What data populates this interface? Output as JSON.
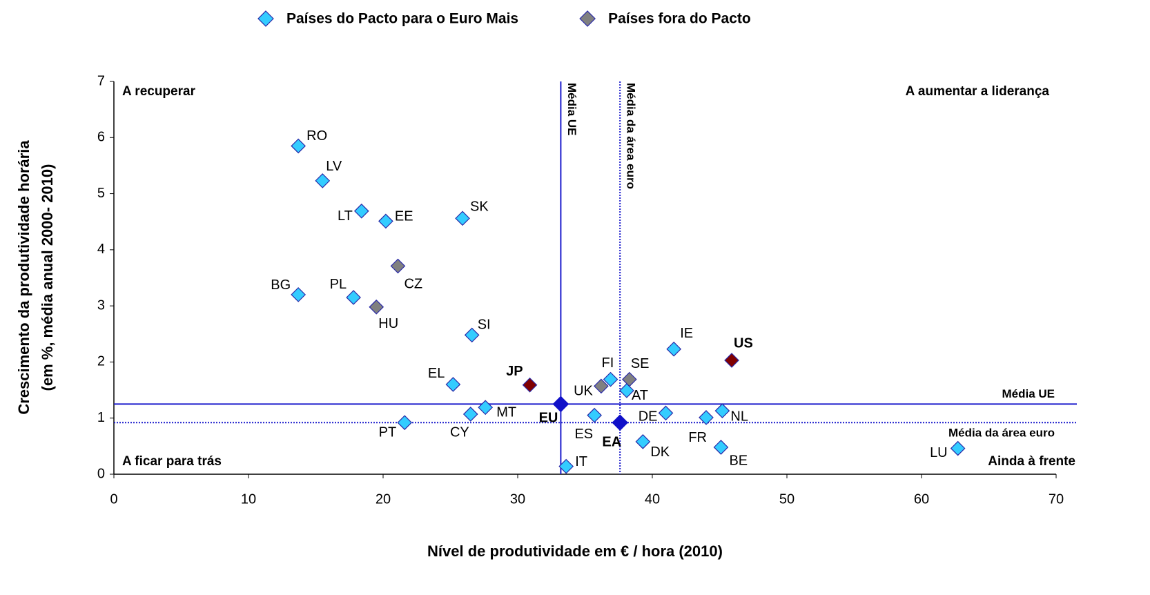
{
  "chart_data": {
    "type": "scatter",
    "xlabel": "Nível de produtividade em € / hora (2010)",
    "ylabel": [
      "Crescimento da produtividade horária",
      "(em %, média anual 2000- 2010)"
    ],
    "xlim": [
      0,
      70
    ],
    "xticks": [
      0,
      10,
      20,
      30,
      40,
      50,
      60,
      70
    ],
    "ylim": [
      0,
      7
    ],
    "yticks": [
      0,
      1,
      2,
      3,
      4,
      5,
      6,
      7
    ],
    "legend": "top",
    "series": [
      {
        "name": "Países do Pacto para o Euro Mais",
        "color": "#33ccff",
        "labels": [
          "RO",
          "LV",
          "LT",
          "EE",
          "SK",
          "BG",
          "PL",
          "SI",
          "IE",
          "FI",
          "EL",
          "AT",
          "MT",
          "CY",
          "PT",
          "ES",
          "DE",
          "FR",
          "NL",
          "DK",
          "BE",
          "LU",
          "IT"
        ],
        "x": [
          13.7,
          15.5,
          18.4,
          20.2,
          25.9,
          13.7,
          17.8,
          26.6,
          41.6,
          36.9,
          25.2,
          38.1,
          27.6,
          26.5,
          21.6,
          35.7,
          41.0,
          44.0,
          45.2,
          39.3,
          45.1,
          62.7,
          33.6
        ],
        "values": [
          5.85,
          5.23,
          4.69,
          4.51,
          4.56,
          3.2,
          3.15,
          2.48,
          2.23,
          1.69,
          1.6,
          1.49,
          1.19,
          1.07,
          0.92,
          1.05,
          1.09,
          1.01,
          1.13,
          0.58,
          0.48,
          0.46,
          0.14
        ]
      },
      {
        "name": "Países fora do Pacto",
        "color": "#808080",
        "labels": [
          "CZ",
          "HU",
          "UK",
          "SE"
        ],
        "x": [
          21.1,
          19.5,
          36.2,
          38.3
        ],
        "values": [
          3.71,
          2.98,
          1.57,
          1.69
        ]
      },
      {
        "color": "#800000",
        "labels": [
          "JP",
          "US"
        ],
        "x": [
          30.9,
          45.9
        ],
        "values": [
          1.59,
          2.03
        ]
      },
      {
        "color": "#1010c8",
        "labels": [
          "EU",
          "EA"
        ],
        "x": [
          33.2,
          37.6
        ],
        "values": [
          1.25,
          0.92
        ]
      }
    ],
    "reference_lines": [
      {
        "label": "Média UE",
        "axis": "x",
        "value": 33.2,
        "style": "solid"
      },
      {
        "label": "Média da área euro",
        "axis": "x",
        "value": 37.6,
        "style": "dotted"
      },
      {
        "label": "Média UE",
        "axis": "y",
        "value": 1.25,
        "style": "solid"
      },
      {
        "label": "Média da área euro",
        "axis": "y",
        "value": 0.92,
        "style": "dotted"
      }
    ],
    "annotations": [
      "A recuperar",
      "A aumentar a liderança",
      "A ficar para trás",
      "Ainda à frente"
    ]
  }
}
